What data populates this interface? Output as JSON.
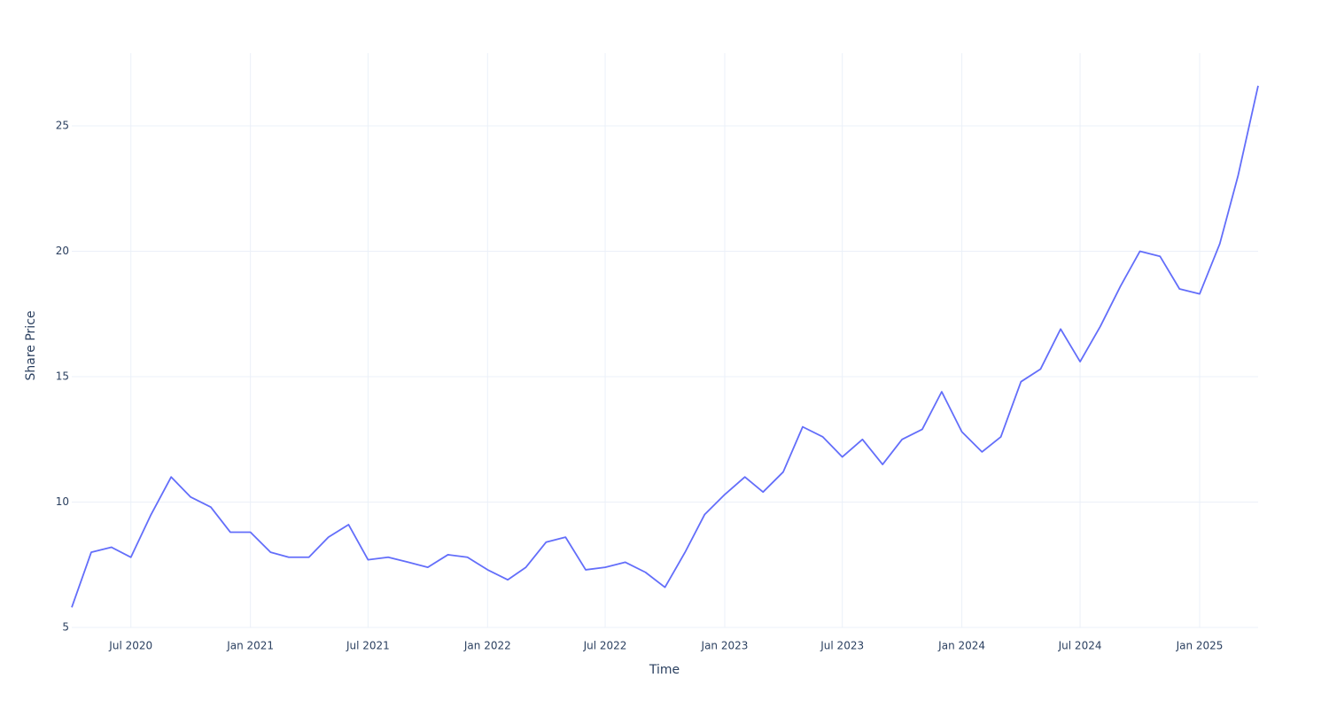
{
  "chart_data": {
    "type": "line",
    "x_label": "Time",
    "y_label": "Share Price",
    "x": [
      "2020-04",
      "2020-05",
      "2020-06",
      "2020-07",
      "2020-08",
      "2020-09",
      "2020-10",
      "2020-11",
      "2020-12",
      "2021-01",
      "2021-02",
      "2021-03",
      "2021-04",
      "2021-05",
      "2021-06",
      "2021-07",
      "2021-08",
      "2021-09",
      "2021-10",
      "2021-11",
      "2021-12",
      "2022-01",
      "2022-02",
      "2022-03",
      "2022-04",
      "2022-05",
      "2022-06",
      "2022-07",
      "2022-08",
      "2022-09",
      "2022-10",
      "2022-11",
      "2022-12",
      "2023-01",
      "2023-02",
      "2023-03",
      "2023-04",
      "2023-05",
      "2023-06",
      "2023-07",
      "2023-08",
      "2023-09",
      "2023-10",
      "2023-11",
      "2023-12",
      "2024-01",
      "2024-02",
      "2024-03",
      "2024-04",
      "2024-05",
      "2024-06",
      "2024-07",
      "2024-08",
      "2024-09",
      "2024-10",
      "2024-11",
      "2024-12",
      "2025-01",
      "2025-02",
      "2025-03",
      "2025-04"
    ],
    "series": [
      {
        "name": "Share Price",
        "color": "#636efa",
        "values": [
          5.8,
          8.0,
          8.2,
          7.8,
          9.5,
          11.0,
          10.2,
          9.8,
          8.8,
          8.8,
          8.0,
          7.8,
          7.8,
          8.6,
          9.1,
          7.7,
          7.8,
          7.6,
          7.4,
          7.9,
          7.8,
          7.3,
          6.9,
          7.4,
          8.4,
          8.6,
          7.3,
          7.4,
          7.6,
          7.2,
          6.6,
          8.0,
          9.5,
          10.3,
          11.0,
          10.4,
          11.2,
          13.0,
          12.6,
          11.8,
          12.5,
          11.5,
          12.5,
          12.9,
          14.4,
          12.8,
          12.0,
          12.6,
          14.8,
          15.3,
          16.9,
          15.6,
          17.0,
          18.6,
          20.0,
          19.8,
          18.5,
          18.3,
          20.3,
          23.0,
          26.6
        ]
      }
    ],
    "xlim": [
      "2020-04",
      "2025-04"
    ],
    "xticks": [
      {
        "value": "2020-07",
        "label": "Jul 2020"
      },
      {
        "value": "2021-01",
        "label": "Jan 2021"
      },
      {
        "value": "2021-07",
        "label": "Jul 2021"
      },
      {
        "value": "2022-01",
        "label": "Jan 2022"
      },
      {
        "value": "2022-07",
        "label": "Jul 2022"
      },
      {
        "value": "2023-01",
        "label": "Jan 2023"
      },
      {
        "value": "2023-07",
        "label": "Jul 2023"
      },
      {
        "value": "2024-01",
        "label": "Jan 2024"
      },
      {
        "value": "2024-07",
        "label": "Jul 2024"
      },
      {
        "value": "2025-01",
        "label": "Jan 2025"
      }
    ],
    "ylim": [
      5,
      27.9
    ],
    "yticks": [
      5,
      10,
      15,
      20,
      25
    ],
    "grid": true
  }
}
